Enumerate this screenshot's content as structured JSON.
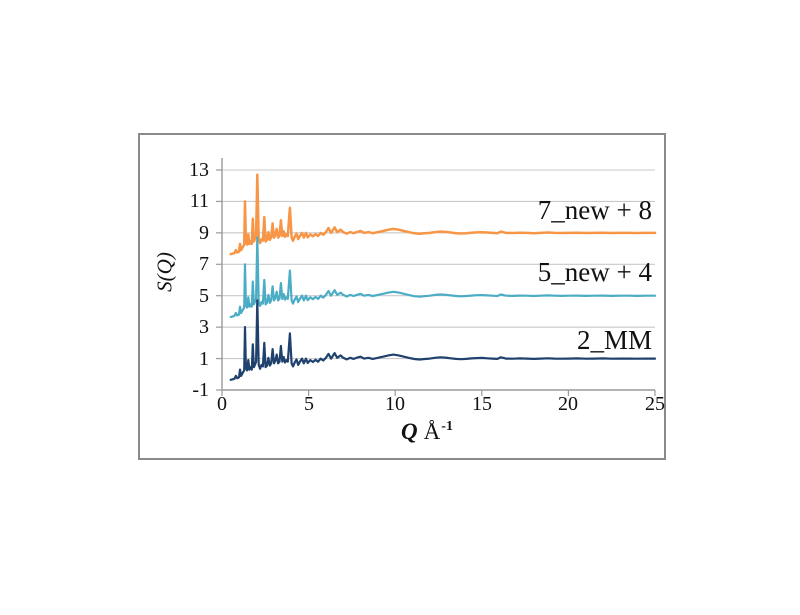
{
  "figure": {
    "border_color": "#8a8a8a",
    "background": "#ffffff",
    "grid_color": "#c9c9c9",
    "axis_color": "#9a9a9a"
  },
  "chart_data": {
    "type": "line",
    "title": "",
    "ylabel": "S(Q)",
    "xlabel": {
      "symbol": "Q",
      "unit": "Å",
      "exponent": "-1"
    },
    "xlim": [
      0,
      25
    ],
    "ylim": [
      -1,
      13
    ],
    "grid": "horizontal gridlines at every labeled y tick",
    "legend_position": "inline annotations at right of each curve",
    "x_ticks": [
      "0",
      "5",
      "10",
      "15",
      "20",
      "25"
    ],
    "y_ticks": [
      "13",
      "11",
      "9",
      "7",
      "5",
      "3",
      "1",
      "-1"
    ],
    "series": [
      {
        "label": "2_MM",
        "color": "#1f416e",
        "offset": 0,
        "line_width": 2.2
      },
      {
        "label": "5_new + 4",
        "color": "#4bacc6",
        "offset": 4,
        "line_width": 2.2
      },
      {
        "label": "7_new + 8",
        "color": "#f79646",
        "offset": 8,
        "line_width": 2.5
      }
    ],
    "note": "All three curves share the same base structure-factor data; each series plots S(Q)+offset.",
    "base_points": [
      [
        0.5,
        -0.35
      ],
      [
        0.62,
        -0.32
      ],
      [
        0.72,
        -0.28
      ],
      [
        0.8,
        -0.1
      ],
      [
        0.88,
        -0.25
      ],
      [
        0.98,
        -0.2
      ],
      [
        1.04,
        0.3
      ],
      [
        1.1,
        -0.1
      ],
      [
        1.2,
        0.1
      ],
      [
        1.28,
        0.25
      ],
      [
        1.33,
        3.0
      ],
      [
        1.38,
        0.4
      ],
      [
        1.45,
        0.25
      ],
      [
        1.52,
        0.9
      ],
      [
        1.58,
        0.3
      ],
      [
        1.65,
        0.45
      ],
      [
        1.72,
        0.3
      ],
      [
        1.78,
        1.9
      ],
      [
        1.84,
        0.45
      ],
      [
        1.9,
        0.6
      ],
      [
        1.97,
        0.8
      ],
      [
        2.04,
        4.7
      ],
      [
        2.12,
        0.6
      ],
      [
        2.2,
        0.35
      ],
      [
        2.28,
        0.6
      ],
      [
        2.36,
        0.5
      ],
      [
        2.44,
        2.0
      ],
      [
        2.52,
        0.45
      ],
      [
        2.6,
        0.55
      ],
      [
        2.68,
        1.05
      ],
      [
        2.76,
        0.55
      ],
      [
        2.84,
        0.7
      ],
      [
        2.92,
        1.6
      ],
      [
        3.0,
        0.7
      ],
      [
        3.08,
        0.85
      ],
      [
        3.16,
        1.25
      ],
      [
        3.24,
        0.7
      ],
      [
        3.32,
        0.8
      ],
      [
        3.4,
        1.8
      ],
      [
        3.48,
        0.8
      ],
      [
        3.56,
        1.1
      ],
      [
        3.64,
        0.75
      ],
      [
        3.72,
        0.9
      ],
      [
        3.8,
        0.8
      ],
      [
        3.92,
        2.6
      ],
      [
        4.02,
        0.7
      ],
      [
        4.1,
        0.5
      ],
      [
        4.2,
        0.75
      ],
      [
        4.3,
        0.95
      ],
      [
        4.4,
        0.6
      ],
      [
        4.5,
        0.8
      ],
      [
        4.62,
        1.0
      ],
      [
        4.72,
        0.7
      ],
      [
        4.85,
        1.0
      ],
      [
        4.95,
        0.72
      ],
      [
        5.1,
        0.9
      ],
      [
        5.25,
        0.78
      ],
      [
        5.4,
        0.92
      ],
      [
        5.55,
        0.8
      ],
      [
        5.7,
        1.0
      ],
      [
        5.85,
        0.88
      ],
      [
        6.0,
        1.05
      ],
      [
        6.15,
        1.3
      ],
      [
        6.3,
        1.0
      ],
      [
        6.5,
        1.35
      ],
      [
        6.65,
        1.05
      ],
      [
        6.85,
        1.2
      ],
      [
        7.0,
        1.05
      ],
      [
        7.2,
        0.95
      ],
      [
        7.4,
        1.05
      ],
      [
        7.6,
        0.98
      ],
      [
        7.8,
        1.06
      ],
      [
        8.0,
        1.12
      ],
      [
        8.2,
        1.0
      ],
      [
        8.45,
        1.05
      ],
      [
        8.7,
        0.98
      ],
      [
        9.0,
        1.05
      ],
      [
        9.3,
        1.12
      ],
      [
        9.6,
        1.2
      ],
      [
        9.9,
        1.25
      ],
      [
        10.2,
        1.2
      ],
      [
        10.5,
        1.12
      ],
      [
        10.8,
        1.04
      ],
      [
        11.1,
        0.97
      ],
      [
        11.4,
        0.94
      ],
      [
        11.7,
        0.97
      ],
      [
        12.0,
        1.0
      ],
      [
        12.3,
        1.05
      ],
      [
        12.6,
        1.08
      ],
      [
        12.9,
        1.06
      ],
      [
        13.2,
        1.02
      ],
      [
        13.5,
        0.98
      ],
      [
        13.8,
        0.96
      ],
      [
        14.1,
        0.98
      ],
      [
        14.4,
        1.01
      ],
      [
        14.7,
        1.03
      ],
      [
        15.0,
        1.04
      ],
      [
        15.3,
        1.02
      ],
      [
        15.6,
        1.0
      ],
      [
        15.9,
        0.98
      ],
      [
        16.1,
        1.08
      ],
      [
        16.4,
        1.0
      ],
      [
        16.8,
        0.99
      ],
      [
        17.2,
        1.01
      ],
      [
        17.6,
        1.0
      ],
      [
        18.0,
        0.98
      ],
      [
        18.4,
        1.0
      ],
      [
        18.8,
        1.02
      ],
      [
        19.2,
        1.0
      ],
      [
        19.6,
        0.99
      ],
      [
        20.0,
        1.0
      ],
      [
        20.5,
        1.01
      ],
      [
        21.0,
        0.99
      ],
      [
        21.5,
        1.0
      ],
      [
        22.0,
        1.01
      ],
      [
        22.5,
        0.99
      ],
      [
        23.0,
        1.0
      ],
      [
        23.5,
        1.0
      ],
      [
        24.0,
        0.99
      ],
      [
        24.5,
        1.0
      ],
      [
        25.0,
        1.0
      ]
    ]
  }
}
